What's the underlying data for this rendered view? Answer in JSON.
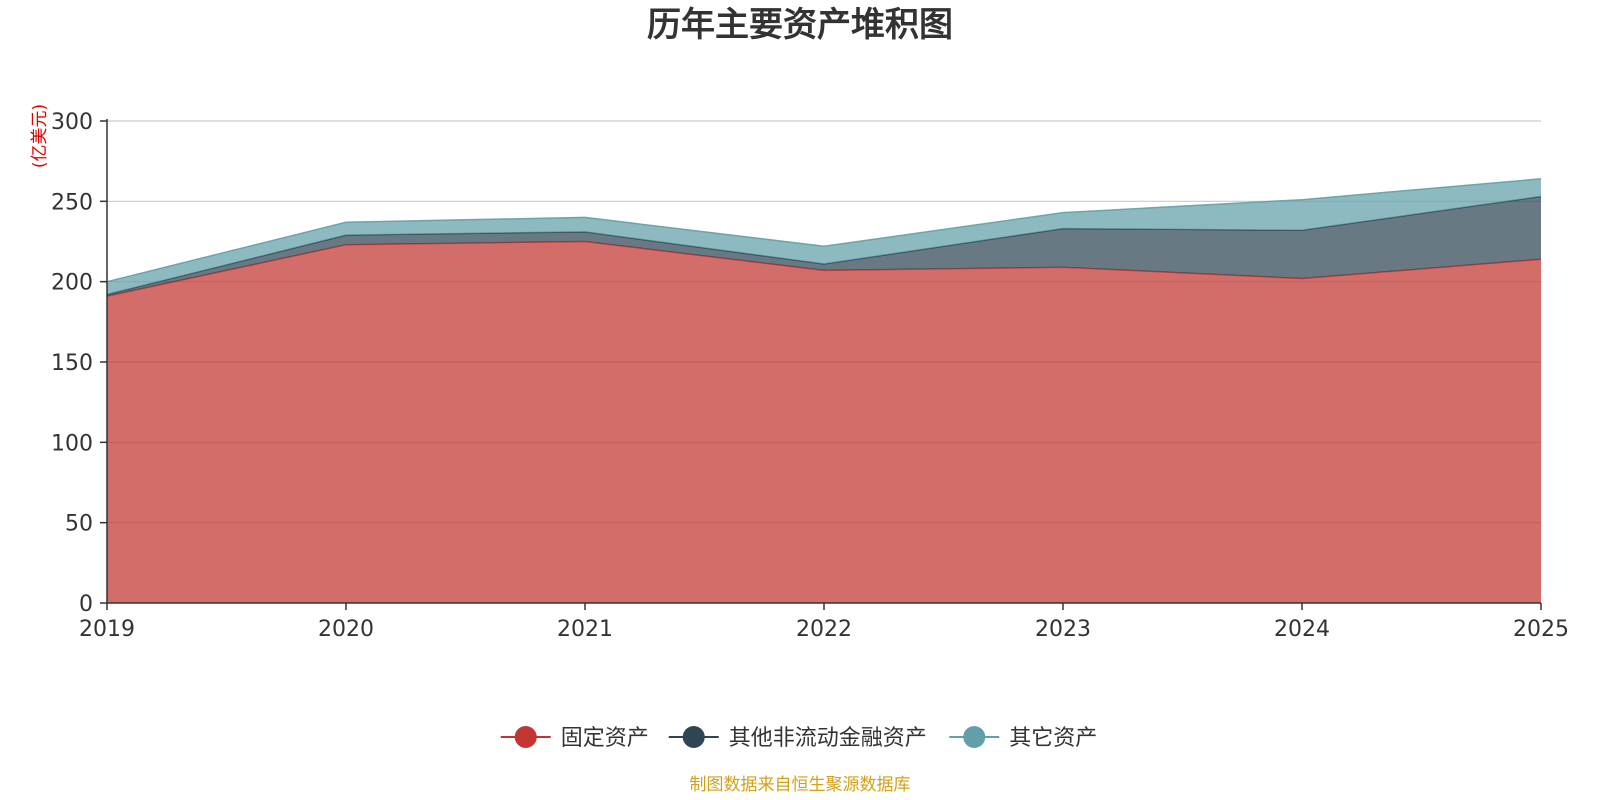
{
  "chart_data": {
    "type": "area",
    "stacked": true,
    "title": "历年主要资产堆积图",
    "ylabel": "(亿美元)",
    "xlabel": "",
    "x": [
      "2019",
      "2020",
      "2021",
      "2022",
      "2023",
      "2024",
      "2025"
    ],
    "ylim": [
      0,
      300
    ],
    "yticks": [
      0,
      50,
      100,
      150,
      200,
      250,
      300
    ],
    "grid": true,
    "legend_position": "bottom",
    "series": [
      {
        "name": "固定资产",
        "color": "#c23531",
        "values": [
          191,
          223,
          225,
          207,
          209,
          202,
          214
        ]
      },
      {
        "name": "其他非流动金融资产",
        "color": "#2f4554",
        "values": [
          1,
          6,
          6,
          4,
          24,
          30,
          39
        ]
      },
      {
        "name": "其它资产",
        "color": "#61a0a8",
        "values": [
          8,
          8,
          9,
          11,
          10,
          19,
          11
        ]
      }
    ],
    "source_note": "制图数据来自恒生聚源数据库"
  }
}
